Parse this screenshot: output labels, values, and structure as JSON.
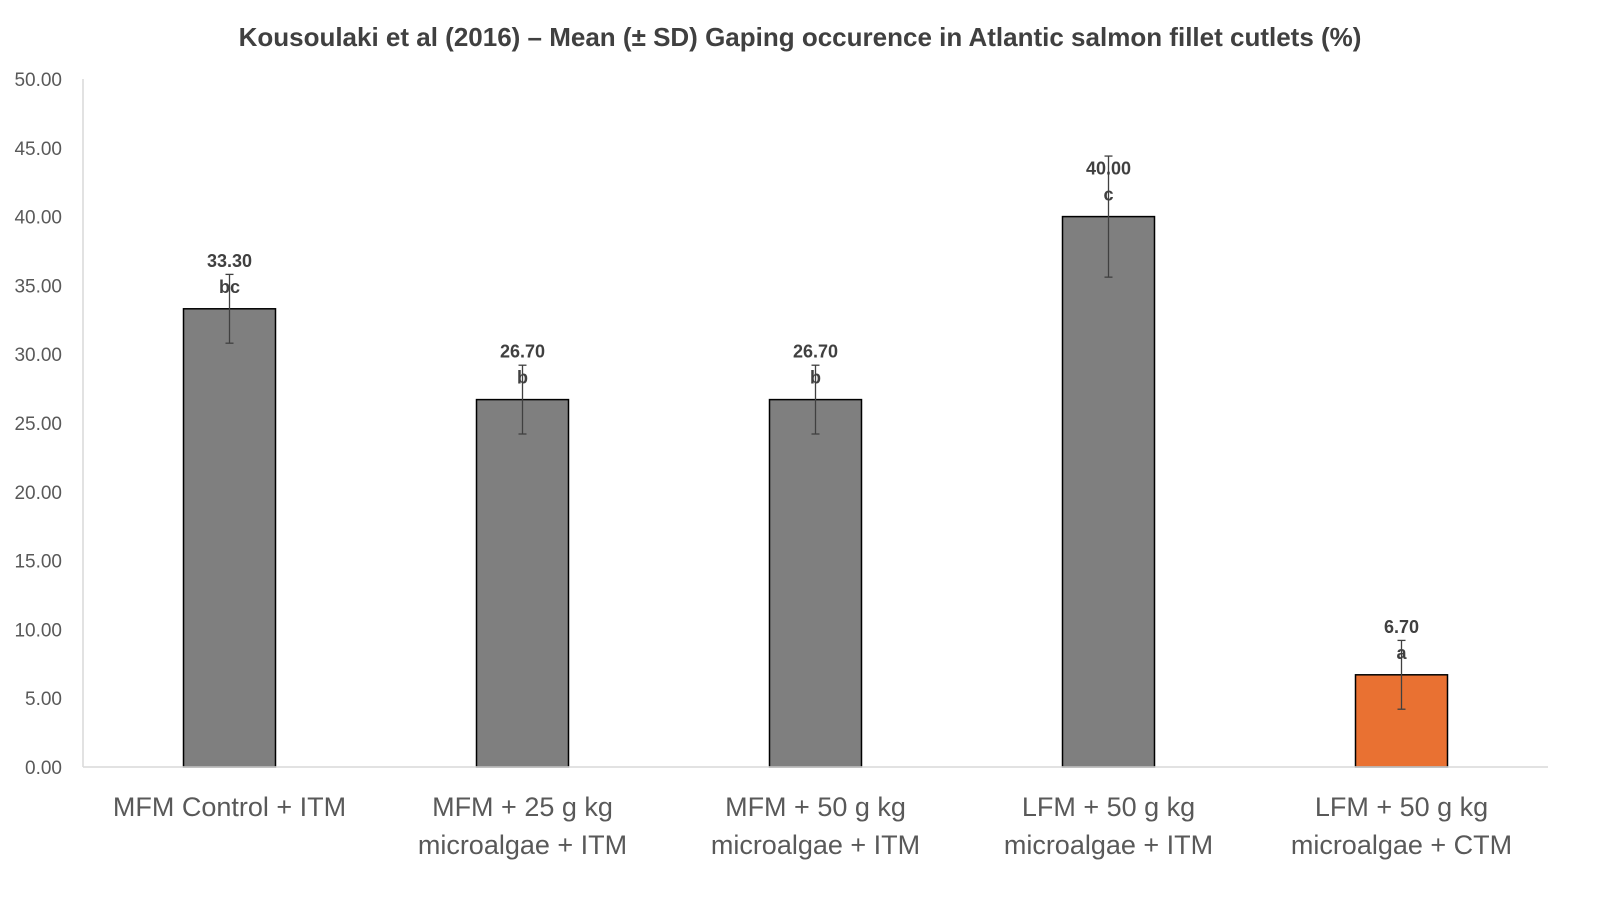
{
  "chart_data": {
    "type": "bar",
    "title": "Kousoulaki et al (2016) – Mean (± SD) Gaping occurence in Atlantic salmon fillet cutlets (%)",
    "xlabel": "",
    "ylabel": "",
    "ylim": [
      0,
      50
    ],
    "yticks": [
      0,
      5,
      10,
      15,
      20,
      25,
      30,
      35,
      40,
      45,
      50
    ],
    "ytick_labels": [
      "0.00",
      "5.00",
      "10.00",
      "15.00",
      "20.00",
      "25.00",
      "30.00",
      "35.00",
      "40.00",
      "45.00",
      "50.00"
    ],
    "grid": false,
    "legend": "none",
    "categories": [
      [
        "MFM Control + ITM"
      ],
      [
        "MFM + 25 g kg",
        "microalgae + ITM"
      ],
      [
        "MFM + 50 g kg",
        "microalgae + ITM"
      ],
      [
        "LFM + 50 g kg",
        "microalgae + ITM"
      ],
      [
        "LFM + 50 g kg",
        "microalgae + CTM"
      ]
    ],
    "values": [
      33.3,
      26.7,
      26.7,
      40.0,
      6.7
    ],
    "error_sd": [
      2.5,
      2.5,
      2.5,
      4.4,
      2.5
    ],
    "value_labels": [
      "33.30",
      "26.70",
      "26.70",
      "40.00",
      "6.70"
    ],
    "significance_letters": [
      "bc",
      "b",
      "b",
      "c",
      "a"
    ],
    "bar_colors": [
      "#7f7f7f",
      "#7f7f7f",
      "#7f7f7f",
      "#7f7f7f",
      "#e97132"
    ],
    "bar_edge_color": "#000000",
    "error_bar_color": "#404040",
    "axis_color": "#d9d9d9"
  }
}
